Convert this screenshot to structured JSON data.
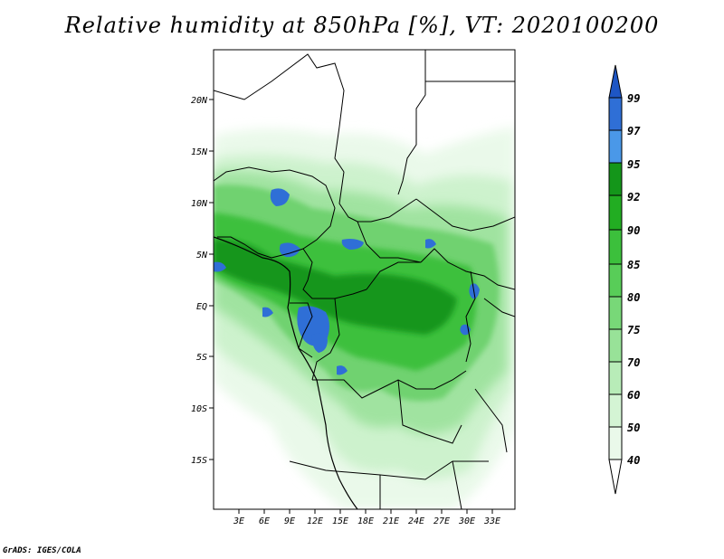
{
  "title": "Relative humidity at 850hPa [%], VT: 2020100200",
  "credit": "GrADS: IGES/COLA",
  "map": {
    "lat_labels": [
      "20N",
      "15N",
      "10N",
      "5N",
      "EQ",
      "5S",
      "10S",
      "15S"
    ],
    "lon_labels": [
      "3E",
      "6E",
      "9E",
      "12E",
      "15E",
      "18E",
      "21E",
      "24E",
      "27E",
      "30E",
      "33E"
    ]
  },
  "colorbar": {
    "levels": [
      "40",
      "50",
      "60",
      "70",
      "75",
      "80",
      "85",
      "90",
      "92",
      "95",
      "97",
      "99"
    ],
    "colors": [
      "#ffffff",
      "#eaf9ea",
      "#d4f4d4",
      "#b8ecb8",
      "#98e298",
      "#78d878",
      "#58cd58",
      "#3cc03c",
      "#22ad22",
      "#14961a",
      "#4a98e8",
      "#2f6fd6",
      "#1e56c4"
    ]
  },
  "colors": {
    "very_humid": "#2f6fd6",
    "humid": "#22ad22",
    "moderate": "#78d878",
    "dry": "#d4f4d4"
  }
}
